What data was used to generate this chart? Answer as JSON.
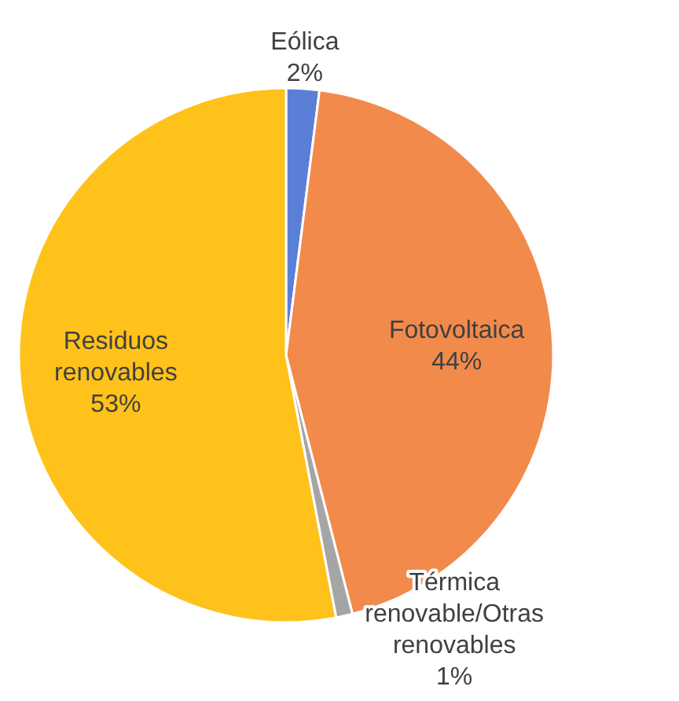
{
  "chart_data": {
    "type": "pie",
    "categories": [
      "Eólica",
      "Fotovoltaica",
      "Térmica renovable/Otras renovables",
      "Residuos renovables"
    ],
    "values": [
      2,
      44,
      1,
      53
    ],
    "value_labels": [
      "2%",
      "44%",
      "1%",
      "53%"
    ],
    "colors": [
      "#5b7fd6",
      "#f28a4c",
      "#a5a5a5",
      "#ffc21a"
    ],
    "legend": false
  }
}
